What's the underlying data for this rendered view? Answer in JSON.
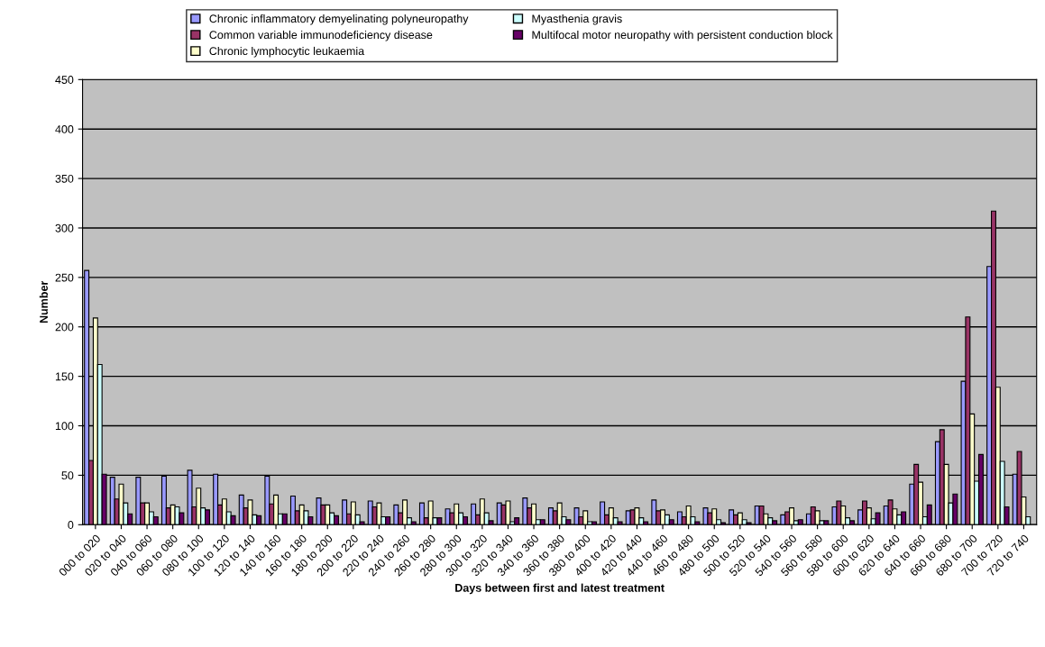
{
  "chart_data": {
    "type": "bar",
    "xlabel": "Days between first and latest treatment",
    "ylabel": "Number",
    "categories": [
      "000 to 020",
      "020 to 040",
      "040 to 060",
      "060 to 080",
      "080 to 100",
      "100 to 120",
      "120 to 140",
      "140 to 160",
      "160 to 180",
      "180 to 200",
      "200 to 220",
      "220 to 240",
      "240 to 260",
      "260 to 280",
      "280 to 300",
      "300 to 320",
      "320 to 340",
      "340 to 360",
      "360 to 380",
      "380 to 400",
      "400 to 420",
      "420 to 440",
      "440 to 460",
      "460 to 480",
      "480 to 500",
      "500 to 520",
      "520 to 540",
      "540 to 560",
      "560 to 580",
      "580 to 600",
      "600 to 620",
      "620 to 640",
      "640 to 660",
      "660 to 680",
      "680 to 700",
      "700 to 720",
      "720 to 740"
    ],
    "series": [
      {
        "name": "Chronic inflammatory demyelinating polyneuropathy",
        "color": "#9999ff",
        "values": [
          257,
          48,
          48,
          49,
          55,
          51,
          30,
          49,
          29,
          27,
          25,
          24,
          20,
          22,
          16,
          21,
          22,
          27,
          17,
          17,
          23,
          14,
          25,
          13,
          17,
          15,
          19,
          10,
          11,
          18,
          15,
          19,
          41,
          84,
          145,
          261,
          51
        ]
      },
      {
        "name": "Common variable immunodeficiency disease",
        "color": "#993366",
        "values": [
          65,
          26,
          22,
          17,
          18,
          20,
          17,
          21,
          14,
          20,
          11,
          18,
          12,
          7,
          12,
          10,
          20,
          17,
          14,
          8,
          10,
          15,
          14,
          8,
          12,
          10,
          19,
          13,
          18,
          24,
          24,
          25,
          61,
          96,
          210,
          317,
          74
        ]
      },
      {
        "name": "Chronic lymphocytic leukaemia",
        "color": "#ffffcc",
        "values": [
          209,
          41,
          22,
          20,
          37,
          26,
          25,
          30,
          20,
          20,
          23,
          22,
          25,
          24,
          21,
          26,
          24,
          21,
          22,
          14,
          17,
          17,
          15,
          19,
          16,
          12,
          11,
          17,
          14,
          19,
          17,
          16,
          43,
          61,
          112,
          139,
          28
        ]
      },
      {
        "name": "Myasthenia gravis",
        "color": "#ccffff",
        "values": [
          162,
          22,
          13,
          18,
          17,
          13,
          10,
          11,
          14,
          12,
          10,
          8,
          7,
          7,
          12,
          12,
          3,
          5,
          8,
          3,
          7,
          7,
          10,
          8,
          5,
          5,
          7,
          4,
          4,
          7,
          6,
          10,
          8,
          22,
          44,
          64,
          8
        ]
      },
      {
        "name": "Multifocal motor neuropathy with persistent conduction block",
        "color": "#660066",
        "values": [
          51,
          11,
          8,
          12,
          15,
          9,
          9,
          11,
          8,
          9,
          3,
          8,
          3,
          7,
          8,
          4,
          7,
          5,
          5,
          3,
          3,
          3,
          5,
          3,
          2,
          2,
          4,
          5,
          4,
          4,
          12,
          13,
          20,
          31,
          71,
          18,
          null
        ]
      }
    ],
    "ylim": [
      0,
      450
    ],
    "yticks": [
      0,
      50,
      100,
      150,
      200,
      250,
      300,
      350,
      400,
      450
    ],
    "grid": "y",
    "legend": "top"
  }
}
